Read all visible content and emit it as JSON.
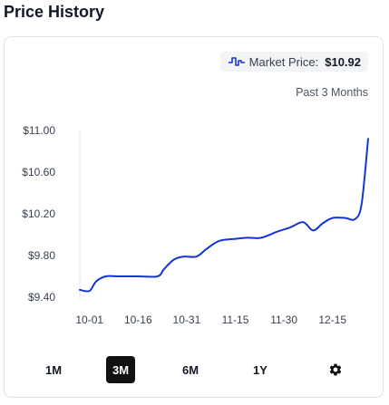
{
  "title": "Price History",
  "legend": {
    "label": "Market Price:",
    "value": "$10.92",
    "icon": "line-chart-icon"
  },
  "range_label": "Past 3 Months",
  "colors": {
    "line": "#1534d8",
    "active_button": "#111111"
  },
  "timeframes": {
    "one_month": "1M",
    "three_month": "3M",
    "six_month": "6M",
    "one_year": "1Y",
    "selected": "3M"
  },
  "settings_icon": "gear-icon",
  "chart_data": {
    "type": "line",
    "title": "Price History",
    "xlabel": "",
    "ylabel": "",
    "y_ticks": [
      "$11.00",
      "$10.60",
      "$10.20",
      "$9.80",
      "$9.40"
    ],
    "y_tick_values": [
      11.0,
      10.6,
      10.2,
      9.8,
      9.4
    ],
    "ylim": [
      9.4,
      11.0
    ],
    "x_ticks": [
      "10-01",
      "10-16",
      "10-31",
      "11-15",
      "11-30",
      "12-15"
    ],
    "x_tick_dates": [
      "2024-10-01",
      "2024-10-16",
      "2024-10-31",
      "2024-11-15",
      "2024-11-30",
      "2024-12-15"
    ],
    "xlim": [
      "2024-09-28",
      "2024-12-26"
    ],
    "grid": false,
    "series": [
      {
        "values": [
          [
            "2024-09-28",
            9.47
          ],
          [
            "2024-10-01",
            9.46
          ],
          [
            "2024-10-03",
            9.55
          ],
          [
            "2024-10-06",
            9.6
          ],
          [
            "2024-10-10",
            9.6
          ],
          [
            "2024-10-16",
            9.6
          ],
          [
            "2024-10-22",
            9.6
          ],
          [
            "2024-10-24",
            9.67
          ],
          [
            "2024-10-27",
            9.76
          ],
          [
            "2024-10-30",
            9.79
          ],
          [
            "2024-11-03",
            9.79
          ],
          [
            "2024-11-06",
            9.86
          ],
          [
            "2024-11-10",
            9.94
          ],
          [
            "2024-11-15",
            9.96
          ],
          [
            "2024-11-19",
            9.97
          ],
          [
            "2024-11-23",
            9.97
          ],
          [
            "2024-11-28",
            10.03
          ],
          [
            "2024-12-02",
            10.07
          ],
          [
            "2024-12-06",
            10.12
          ],
          [
            "2024-12-09",
            10.04
          ],
          [
            "2024-12-12",
            10.11
          ],
          [
            "2024-12-15",
            10.16
          ],
          [
            "2024-12-19",
            10.16
          ],
          [
            "2024-12-22",
            10.15
          ],
          [
            "2024-12-24",
            10.3
          ],
          [
            "2024-12-26",
            10.92
          ]
        ]
      }
    ]
  }
}
